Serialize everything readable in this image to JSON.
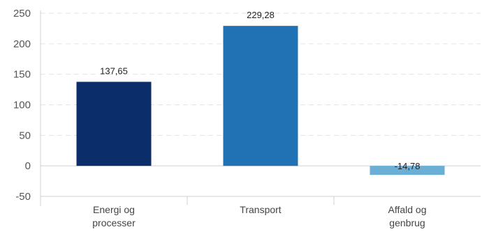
{
  "chart_data": {
    "type": "bar",
    "title": "",
    "xlabel": "",
    "ylabel": "",
    "ylim": [
      -50,
      250
    ],
    "yticks": [
      -50,
      0,
      50,
      100,
      150,
      200,
      250
    ],
    "grid": true,
    "categories": [
      [
        "Energi og",
        "processer"
      ],
      [
        "Transport"
      ],
      [
        "Affald og",
        "genbrug"
      ]
    ],
    "values": [
      137.65,
      229.28,
      -14.78
    ],
    "value_labels": [
      "137,65",
      "229,28",
      "-14,78"
    ],
    "colors": [
      "#0b2d69",
      "#2171b5",
      "#6baed6"
    ]
  }
}
